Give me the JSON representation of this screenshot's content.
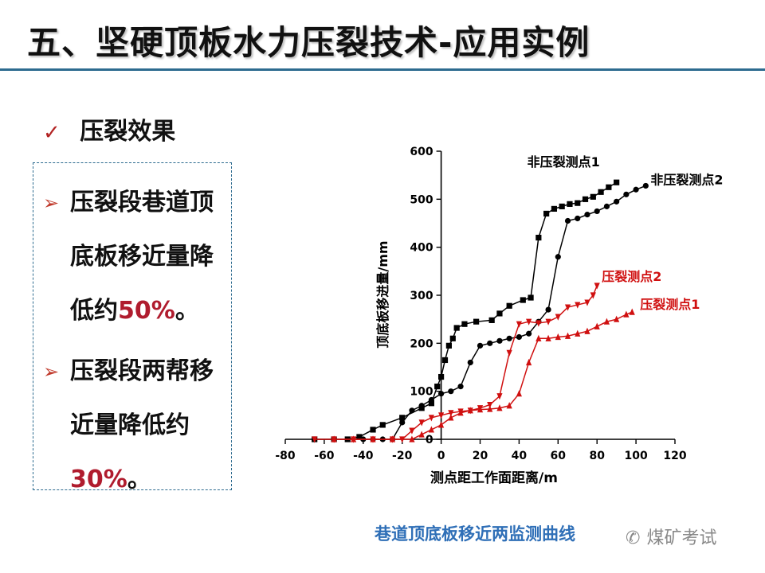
{
  "slide": {
    "title": "五、坚硬顶板水力压裂技术-应用实例",
    "check_label": "压裂效果",
    "bullets": [
      {
        "text": "压裂段巷道顶底板移近量降低约",
        "highlight": "50%",
        "suffix": "。"
      },
      {
        "text": "压裂段两帮移近量降低约",
        "highlight": "30%",
        "suffix": "。"
      }
    ],
    "caption": "巷道顶底板移近两监测曲线",
    "watermark": "煤矿考试",
    "colors": {
      "accent_rule": "#2d6b8f",
      "highlight": "#b01c2e",
      "caption": "#2f6fb7",
      "bullet_arrow": "#c0392b"
    }
  },
  "chart_data": {
    "type": "line",
    "xlabel": "测点距工作面距离/m",
    "ylabel": "顶底板移进量/mm",
    "xlim": [
      -80,
      120
    ],
    "ylim": [
      0,
      600
    ],
    "xticks": [
      -80,
      -60,
      -40,
      -20,
      0,
      20,
      40,
      60,
      80,
      100,
      120
    ],
    "yticks": [
      0,
      100,
      200,
      300,
      400,
      500,
      600
    ],
    "grid": false,
    "series": [
      {
        "name": "非压裂测点1",
        "color": "#000000",
        "marker": "square",
        "points": [
          [
            -65,
            0
          ],
          [
            -55,
            0
          ],
          [
            -48,
            0
          ],
          [
            -42,
            5
          ],
          [
            -35,
            20
          ],
          [
            -30,
            30
          ],
          [
            -20,
            45
          ],
          [
            -10,
            65
          ],
          [
            -5,
            75
          ],
          [
            -2,
            110
          ],
          [
            0,
            130
          ],
          [
            2,
            165
          ],
          [
            4,
            195
          ],
          [
            6,
            210
          ],
          [
            8,
            232
          ],
          [
            12,
            240
          ],
          [
            18,
            245
          ],
          [
            26,
            248
          ],
          [
            30,
            262
          ],
          [
            35,
            278
          ],
          [
            42,
            290
          ],
          [
            46,
            295
          ],
          [
            50,
            420
          ],
          [
            54,
            470
          ],
          [
            58,
            480
          ],
          [
            62,
            485
          ],
          [
            66,
            490
          ],
          [
            70,
            492
          ],
          [
            74,
            500
          ],
          [
            78,
            505
          ],
          [
            82,
            515
          ],
          [
            86,
            525
          ],
          [
            90,
            535
          ]
        ]
      },
      {
        "name": "非压裂测点2",
        "color": "#000000",
        "marker": "circle",
        "points": [
          [
            -40,
            0
          ],
          [
            -35,
            0
          ],
          [
            -30,
            0
          ],
          [
            -25,
            0
          ],
          [
            -20,
            35
          ],
          [
            -15,
            60
          ],
          [
            -10,
            70
          ],
          [
            -5,
            82
          ],
          [
            0,
            95
          ],
          [
            5,
            100
          ],
          [
            10,
            110
          ],
          [
            15,
            160
          ],
          [
            20,
            195
          ],
          [
            25,
            200
          ],
          [
            30,
            205
          ],
          [
            35,
            210
          ],
          [
            40,
            213
          ],
          [
            45,
            220
          ],
          [
            50,
            245
          ],
          [
            55,
            270
          ],
          [
            60,
            380
          ],
          [
            65,
            455
          ],
          [
            70,
            460
          ],
          [
            75,
            468
          ],
          [
            80,
            475
          ],
          [
            85,
            485
          ],
          [
            90,
            495
          ],
          [
            95,
            510
          ],
          [
            100,
            520
          ],
          [
            105,
            528
          ]
        ]
      },
      {
        "name": "压裂测点2",
        "color": "#d01010",
        "marker": "down-triangle",
        "points": [
          [
            -65,
            0
          ],
          [
            -55,
            0
          ],
          [
            -45,
            0
          ],
          [
            -35,
            0
          ],
          [
            -25,
            0
          ],
          [
            -20,
            0
          ],
          [
            -15,
            18
          ],
          [
            -10,
            35
          ],
          [
            -5,
            45
          ],
          [
            0,
            50
          ],
          [
            5,
            55
          ],
          [
            10,
            58
          ],
          [
            15,
            60
          ],
          [
            20,
            65
          ],
          [
            25,
            72
          ],
          [
            30,
            90
          ],
          [
            35,
            180
          ],
          [
            40,
            240
          ],
          [
            45,
            245
          ],
          [
            50,
            242
          ],
          [
            55,
            245
          ],
          [
            60,
            255
          ],
          [
            65,
            275
          ],
          [
            70,
            280
          ],
          [
            75,
            285
          ],
          [
            78,
            300
          ],
          [
            80,
            320
          ]
        ]
      },
      {
        "name": "压裂测点1",
        "color": "#d01010",
        "marker": "up-triangle",
        "points": [
          [
            -55,
            0
          ],
          [
            -45,
            0
          ],
          [
            -35,
            0
          ],
          [
            -25,
            0
          ],
          [
            -15,
            0
          ],
          [
            -10,
            10
          ],
          [
            -5,
            20
          ],
          [
            0,
            30
          ],
          [
            5,
            45
          ],
          [
            10,
            55
          ],
          [
            15,
            60
          ],
          [
            20,
            62
          ],
          [
            25,
            63
          ],
          [
            30,
            65
          ],
          [
            35,
            70
          ],
          [
            40,
            95
          ],
          [
            45,
            160
          ],
          [
            50,
            210
          ],
          [
            55,
            210
          ],
          [
            60,
            213
          ],
          [
            65,
            215
          ],
          [
            70,
            220
          ],
          [
            75,
            225
          ],
          [
            80,
            235
          ],
          [
            85,
            245
          ],
          [
            90,
            250
          ],
          [
            95,
            260
          ],
          [
            98,
            265
          ]
        ]
      }
    ]
  }
}
